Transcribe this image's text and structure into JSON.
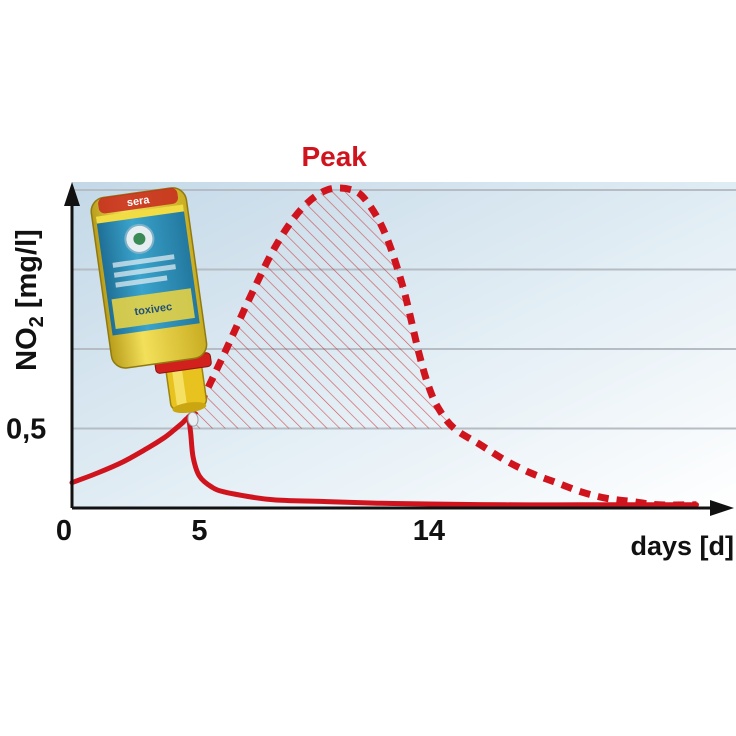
{
  "chart_data": {
    "type": "line",
    "title": "",
    "xlabel": "days [d]",
    "ylabel_main": "NO",
    "ylabel_sub": "2",
    "ylabel_unit": " [mg/l]",
    "x_ticks": [
      "0",
      "5",
      "14"
    ],
    "x_tick_values": [
      0,
      5,
      14
    ],
    "y_ticks": [
      "0,5"
    ],
    "y_tick_values": [
      0.5
    ],
    "xlim": [
      0,
      25.5
    ],
    "ylim": [
      0,
      2.05
    ],
    "y_gridlines": [
      0.5,
      1.0,
      1.5,
      2.0
    ],
    "grid": true,
    "annotations": [
      {
        "text": "Peak",
        "x": 10.6,
        "y": 2.0
      }
    ],
    "series": [
      {
        "style": "solid",
        "color": "#d0141e",
        "x": [
          0,
          1,
          2,
          3,
          3.6,
          4.0,
          4.3,
          4.55,
          4.65,
          4.75,
          5.0,
          5.5,
          6,
          7,
          8,
          10,
          12,
          14,
          17,
          20,
          23,
          24.5
        ],
        "y": [
          0.16,
          0.22,
          0.29,
          0.38,
          0.44,
          0.49,
          0.53,
          0.56,
          0.48,
          0.32,
          0.2,
          0.13,
          0.1,
          0.07,
          0.05,
          0.04,
          0.03,
          0.025,
          0.02,
          0.02,
          0.02,
          0.02
        ]
      },
      {
        "style": "dashed",
        "color": "#d0141e",
        "fill": "hatched",
        "x": [
          4.55,
          5,
          6,
          7,
          8,
          9,
          10,
          11,
          11.6,
          12.3,
          13,
          13.6,
          14,
          14.4,
          15,
          16,
          17,
          18,
          19,
          20,
          21,
          22,
          23,
          24.5
        ],
        "y": [
          0.56,
          0.65,
          0.98,
          1.33,
          1.65,
          1.88,
          2.0,
          2.0,
          1.92,
          1.72,
          1.38,
          0.98,
          0.76,
          0.62,
          0.5,
          0.4,
          0.3,
          0.22,
          0.16,
          0.1,
          0.06,
          0.04,
          0.02,
          0.02
        ]
      }
    ]
  },
  "product": {
    "name": "sera",
    "label_line": "toxivec"
  },
  "colors": {
    "curve": "#d0141e",
    "axis": "#111111",
    "grid": "#b5bcc4",
    "background_top": "#c9dbe8",
    "background_bottom": "#ffffff",
    "bottle_body": "#e9d23a",
    "bottle_label": "#2f8fb8"
  }
}
